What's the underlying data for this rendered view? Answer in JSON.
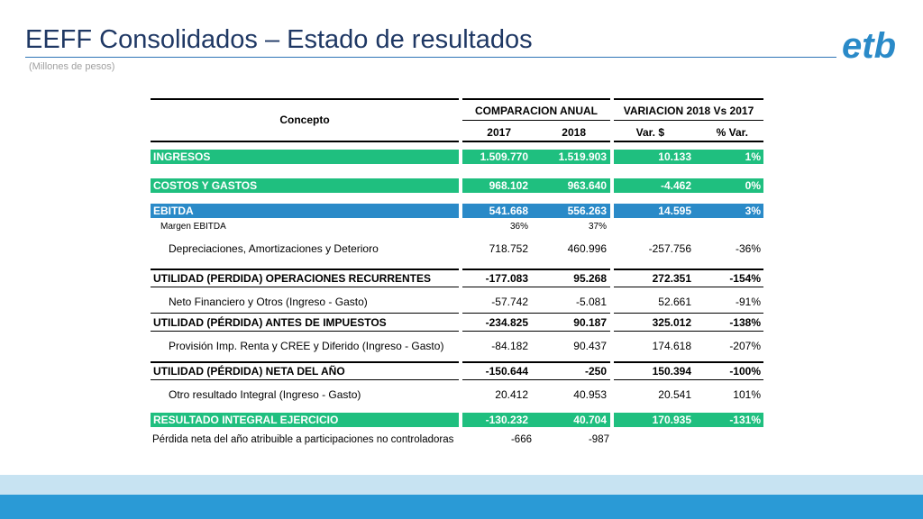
{
  "header": {
    "title": "EEFF Consolidados – Estado de resultados",
    "subtitle": "(Millones de pesos)"
  },
  "logo": {
    "text": "etb"
  },
  "table": {
    "concept_header": "Concepto",
    "group_annual": "COMPARACION ANUAL",
    "group_variation": "VARIACION 2018 Vs 2017",
    "col_2017": "2017",
    "col_2018": "2018",
    "col_var": "Var. $",
    "col_pct": "% Var.",
    "rows": [
      {
        "label": "INGRESOS",
        "v2017": "1.509.770",
        "v2018": "1.519.903",
        "var": "10.133",
        "pct": "1%"
      },
      {
        "label": "COSTOS Y GASTOS",
        "v2017": "968.102",
        "v2018": "963.640",
        "var": "-4.462",
        "pct": "0%"
      },
      {
        "label": "EBITDA",
        "v2017": "541.668",
        "v2018": "556.263",
        "var": "14.595",
        "pct": "3%"
      },
      {
        "label": "Margen EBITDA",
        "v2017": "36%",
        "v2018": "37%",
        "var": "",
        "pct": ""
      },
      {
        "label": "Depreciaciones, Amortizaciones y Deterioro",
        "v2017": "718.752",
        "v2018": "460.996",
        "var": "-257.756",
        "pct": "-36%"
      },
      {
        "label": "UTILIDAD (PERDIDA) OPERACIONES RECURRENTES",
        "v2017": "-177.083",
        "v2018": "95.268",
        "var": "272.351",
        "pct": "-154%"
      },
      {
        "label": "Neto Financiero y Otros (Ingreso - Gasto)",
        "v2017": "-57.742",
        "v2018": "-5.081",
        "var": "52.661",
        "pct": "-91%"
      },
      {
        "label": "UTILIDAD (PÉRDIDA) ANTES DE IMPUESTOS",
        "v2017": "-234.825",
        "v2018": "90.187",
        "var": "325.012",
        "pct": "-138%"
      },
      {
        "label": "Provisión Imp. Renta y CREE y Diferido (Ingreso - Gasto)",
        "v2017": "-84.182",
        "v2018": "90.437",
        "var": "174.618",
        "pct": "-207%"
      },
      {
        "label": "UTILIDAD (PÉRDIDA) NETA DEL AÑO",
        "v2017": "-150.644",
        "v2018": "-250",
        "var": "150.394",
        "pct": "-100%"
      },
      {
        "label": "Otro resultado Integral (Ingreso - Gasto)",
        "v2017": "20.412",
        "v2018": "40.953",
        "var": "20.541",
        "pct": "101%"
      },
      {
        "label": "RESULTADO INTEGRAL EJERCICIO",
        "v2017": "-130.232",
        "v2018": "40.704",
        "var": "170.935",
        "pct": "-131%"
      },
      {
        "label": "Pérdida neta del año atribuible a  participaciones no controladoras",
        "v2017": "-666",
        "v2018": "-987",
        "var": "",
        "pct": ""
      }
    ]
  },
  "colors": {
    "green": "#1fbf7f",
    "blue": "#2a8ac8",
    "title": "#1f3864"
  }
}
